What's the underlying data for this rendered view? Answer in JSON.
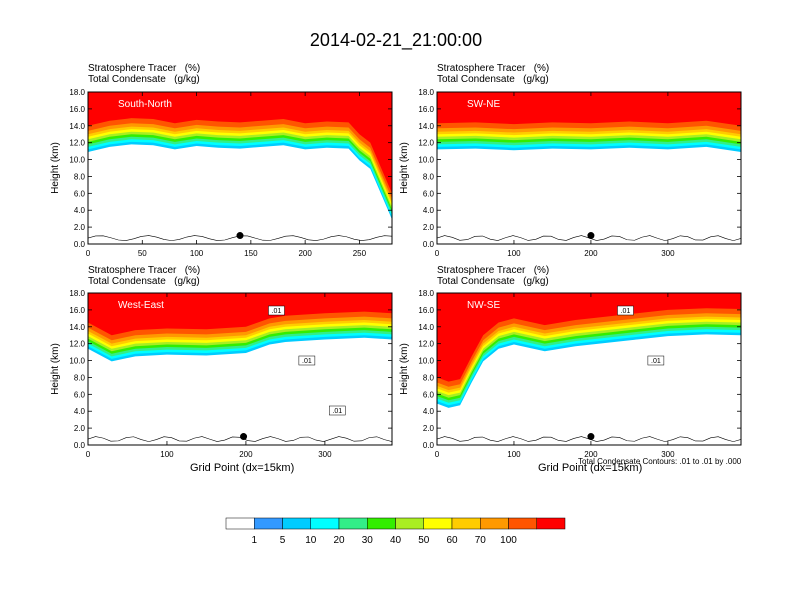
{
  "title": "2014-02-21_21:00:00",
  "colors": {
    "levels": [
      "#ffffff",
      "#3399ff",
      "#00ccff",
      "#00ffff",
      "#33ee88",
      "#33ee00",
      "#aaee22",
      "#ffff00",
      "#ffcc00",
      "#ff9900",
      "#ff5500",
      "#ff0000"
    ]
  },
  "colorbar": {
    "labels": [
      "1",
      "5",
      "10",
      "20",
      "30",
      "40",
      "50",
      "60",
      "70",
      "100"
    ]
  },
  "contour_note": "Total Condensate Contours: .01 to .01 by .000",
  "chart_data": [
    {
      "type": "heatmap",
      "panel": "South-North",
      "field_labels": [
        "Stratosphere Tracer   (%)",
        "Total Condensate   (g/kg)"
      ],
      "ylabel": "Height (km)",
      "xlabel": "",
      "xlim": [
        0,
        280
      ],
      "ylim": [
        0,
        18
      ],
      "xticks": [
        0,
        50,
        100,
        150,
        200,
        250
      ],
      "yticks": [
        "0.0",
        "2.0",
        "4.0",
        "6.0",
        "8.0",
        "10.0",
        "12.0",
        "14.0",
        "16.0",
        "18.0"
      ],
      "marker": {
        "x": 140,
        "y": 1.0
      },
      "tracer_boundary_km": [
        [
          0,
          14.0
        ],
        [
          20,
          14.6
        ],
        [
          40,
          14.9
        ],
        [
          60,
          14.8
        ],
        [
          80,
          14.3
        ],
        [
          100,
          14.7
        ],
        [
          120,
          14.5
        ],
        [
          140,
          14.4
        ],
        [
          160,
          14.6
        ],
        [
          180,
          14.8
        ],
        [
          200,
          14.3
        ],
        [
          220,
          14.5
        ],
        [
          240,
          14.4
        ],
        [
          250,
          13.0
        ],
        [
          260,
          12.0
        ],
        [
          270,
          9.0
        ],
        [
          280,
          6.0
        ]
      ]
    },
    {
      "type": "heatmap",
      "panel": "SW-NE",
      "field_labels": [
        "Stratosphere Tracer   (%)",
        "Total Condensate   (g/kg)"
      ],
      "ylabel": "Height (km)",
      "xlabel": "",
      "xlim": [
        0,
        395
      ],
      "ylim": [
        0,
        18
      ],
      "xticks": [
        0,
        100,
        200,
        300
      ],
      "yticks": [
        "0.0",
        "2.0",
        "4.0",
        "6.0",
        "8.0",
        "10.0",
        "12.0",
        "14.0",
        "16.0",
        "18.0"
      ],
      "marker": {
        "x": 200,
        "y": 1.0
      },
      "tracer_boundary_km": [
        [
          0,
          14.3
        ],
        [
          50,
          14.4
        ],
        [
          100,
          14.2
        ],
        [
          150,
          14.4
        ],
        [
          200,
          14.3
        ],
        [
          250,
          14.5
        ],
        [
          300,
          14.3
        ],
        [
          350,
          14.6
        ],
        [
          395,
          14.0
        ]
      ]
    },
    {
      "type": "heatmap",
      "panel": "West-East",
      "field_labels": [
        "Stratosphere Tracer   (%)",
        "Total Condensate   (g/kg)"
      ],
      "ylabel": "Height (km)",
      "xlabel": "Grid Point (dx=15km)",
      "xlim": [
        0,
        385
      ],
      "ylim": [
        0,
        18
      ],
      "xticks": [
        0,
        100,
        200,
        300
      ],
      "yticks": [
        "0.0",
        "2.0",
        "4.0",
        "6.0",
        "8.0",
        "10.0",
        "12.0",
        "14.0",
        "16.0",
        "18.0"
      ],
      "marker": {
        "x": 197,
        "y": 1.0
      },
      "contour_labels": [
        ".01",
        ".01",
        ".01"
      ],
      "tracer_boundary_km": [
        [
          0,
          14.5
        ],
        [
          30,
          13.0
        ],
        [
          60,
          13.6
        ],
        [
          100,
          13.8
        ],
        [
          150,
          13.7
        ],
        [
          200,
          14.0
        ],
        [
          230,
          15.0
        ],
        [
          250,
          15.3
        ],
        [
          300,
          15.6
        ],
        [
          350,
          15.8
        ],
        [
          385,
          15.6
        ]
      ]
    },
    {
      "type": "heatmap",
      "panel": "NW-SE",
      "field_labels": [
        "Stratosphere Tracer   (%)",
        "Total Condensate   (g/kg)"
      ],
      "ylabel": "Height (km)",
      "xlabel": "Grid Point (dx=15km)",
      "xlim": [
        0,
        395
      ],
      "ylim": [
        0,
        18
      ],
      "xticks": [
        0,
        100,
        200,
        300
      ],
      "yticks": [
        "0.0",
        "2.0",
        "4.0",
        "6.0",
        "8.0",
        "10.0",
        "12.0",
        "14.0",
        "16.0",
        "18.0"
      ],
      "marker": {
        "x": 200,
        "y": 1.0
      },
      "contour_labels": [
        ".01",
        ".01"
      ],
      "tracer_boundary_km": [
        [
          0,
          8.0
        ],
        [
          15,
          7.5
        ],
        [
          30,
          7.8
        ],
        [
          45,
          10.5
        ],
        [
          60,
          13.0
        ],
        [
          80,
          14.5
        ],
        [
          100,
          15.0
        ],
        [
          140,
          14.2
        ],
        [
          180,
          14.8
        ],
        [
          220,
          15.2
        ],
        [
          260,
          15.6
        ],
        [
          300,
          16.0
        ],
        [
          350,
          16.2
        ],
        [
          395,
          16.1
        ]
      ]
    }
  ]
}
